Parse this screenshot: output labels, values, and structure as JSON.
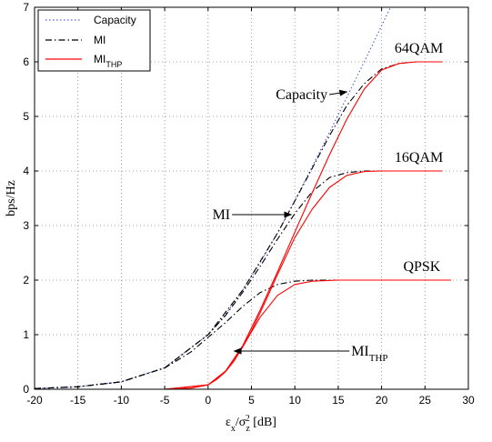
{
  "chart_data": {
    "type": "line",
    "xlabel": "εx/σz2 [dB]",
    "ylabel": "bps/Hz",
    "xlim": [
      -20,
      30
    ],
    "ylim": [
      0,
      7
    ],
    "xticks": [
      -20,
      -15,
      -10,
      -5,
      0,
      5,
      10,
      15,
      20,
      25,
      30
    ],
    "yticks": [
      0,
      1,
      2,
      3,
      4,
      5,
      6,
      7
    ],
    "grid": true,
    "legend_position": "top-left",
    "legend": [
      "Capacity",
      "MI",
      "MI_THP"
    ],
    "series": [
      {
        "name": "Capacity",
        "style": "dotted",
        "color": "#4a5fd0",
        "x": [
          -20,
          -15,
          -10,
          -5,
          0,
          2,
          4,
          6,
          8,
          10,
          12,
          14,
          16,
          18,
          20,
          21
        ],
        "y": [
          0.014,
          0.045,
          0.137,
          0.396,
          1.0,
          1.37,
          1.82,
          2.32,
          2.86,
          3.46,
          4.08,
          4.71,
          5.35,
          6.0,
          6.66,
          6.99
        ]
      },
      {
        "name": "MI",
        "curve": "QPSK",
        "style": "dashdot",
        "color": "#000000",
        "x": [
          -20,
          -15,
          -10,
          -5,
          -2,
          0,
          2,
          4,
          6,
          8,
          10,
          12,
          14,
          17,
          20,
          27
        ],
        "y": [
          0.014,
          0.045,
          0.137,
          0.39,
          0.68,
          0.95,
          1.22,
          1.52,
          1.77,
          1.92,
          1.98,
          2.0,
          2.0,
          2.0,
          2.0,
          2.0
        ]
      },
      {
        "name": "MI",
        "curve": "16QAM",
        "style": "dashdot",
        "color": "#000000",
        "x": [
          -20,
          -15,
          -10,
          -5,
          0,
          2,
          4,
          6,
          8,
          10,
          12,
          14,
          16,
          18,
          20,
          27
        ],
        "y": [
          0.014,
          0.045,
          0.137,
          0.39,
          1.0,
          1.35,
          1.78,
          2.25,
          2.75,
          3.22,
          3.62,
          3.88,
          3.97,
          4.0,
          4.0,
          4.0
        ]
      },
      {
        "name": "MI",
        "curve": "64QAM",
        "style": "dashdot",
        "color": "#000000",
        "x": [
          -20,
          -15,
          -10,
          -5,
          0,
          4,
          8,
          10,
          12,
          14,
          16,
          18,
          20,
          22,
          24,
          27
        ],
        "y": [
          0.014,
          0.045,
          0.137,
          0.39,
          1.0,
          1.82,
          2.86,
          3.45,
          4.05,
          4.65,
          5.2,
          5.6,
          5.87,
          5.97,
          6.0,
          6.0
        ]
      },
      {
        "name": "MI_THP",
        "curve": "QPSK",
        "style": "solid",
        "color": "#ff0000",
        "x": [
          -20,
          -5,
          -2,
          0,
          1,
          2,
          3,
          4,
          5,
          6,
          8,
          10,
          12,
          15,
          20,
          28
        ],
        "y": [
          0.0,
          0.0,
          0.02,
          0.08,
          0.18,
          0.32,
          0.52,
          0.78,
          1.05,
          1.32,
          1.72,
          1.92,
          1.98,
          2.0,
          2.0,
          2.0
        ]
      },
      {
        "name": "MI_THP",
        "curve": "16QAM",
        "style": "solid",
        "color": "#ff0000",
        "x": [
          -20,
          -5,
          0,
          2,
          3,
          4,
          5,
          6,
          7,
          8,
          10,
          12,
          14,
          16,
          18,
          20,
          27
        ],
        "y": [
          0.0,
          0.0,
          0.08,
          0.33,
          0.53,
          0.78,
          1.07,
          1.4,
          1.75,
          2.1,
          2.78,
          3.3,
          3.7,
          3.92,
          3.99,
          4.0,
          4.0
        ]
      },
      {
        "name": "MI_THP",
        "curve": "64QAM",
        "style": "solid",
        "color": "#ff0000",
        "x": [
          -20,
          -5,
          0,
          2,
          4,
          6,
          8,
          10,
          12,
          14,
          16,
          18,
          20,
          22,
          24,
          27
        ],
        "y": [
          0.0,
          0.0,
          0.08,
          0.33,
          0.8,
          1.45,
          2.15,
          2.88,
          3.6,
          4.3,
          4.95,
          5.5,
          5.85,
          5.97,
          6.0,
          6.0
        ]
      }
    ],
    "annotations": [
      {
        "text": "64QAM",
        "x": 21.5,
        "y": 6.25
      },
      {
        "text": "16QAM",
        "x": 21.5,
        "y": 4.25
      },
      {
        "text": "QPSK",
        "x": 22.5,
        "y": 2.25
      },
      {
        "text": "Capacity",
        "x": 7.8,
        "y": 5.4,
        "arrow_to": [
          16.0,
          5.45
        ]
      },
      {
        "text": "MI",
        "x": 0.5,
        "y": 3.2,
        "arrow_to": [
          9.6,
          3.2
        ]
      },
      {
        "text": "MI_THP",
        "x": 16.5,
        "y": 0.7,
        "arrow_to": [
          3.0,
          0.7
        ]
      }
    ]
  }
}
